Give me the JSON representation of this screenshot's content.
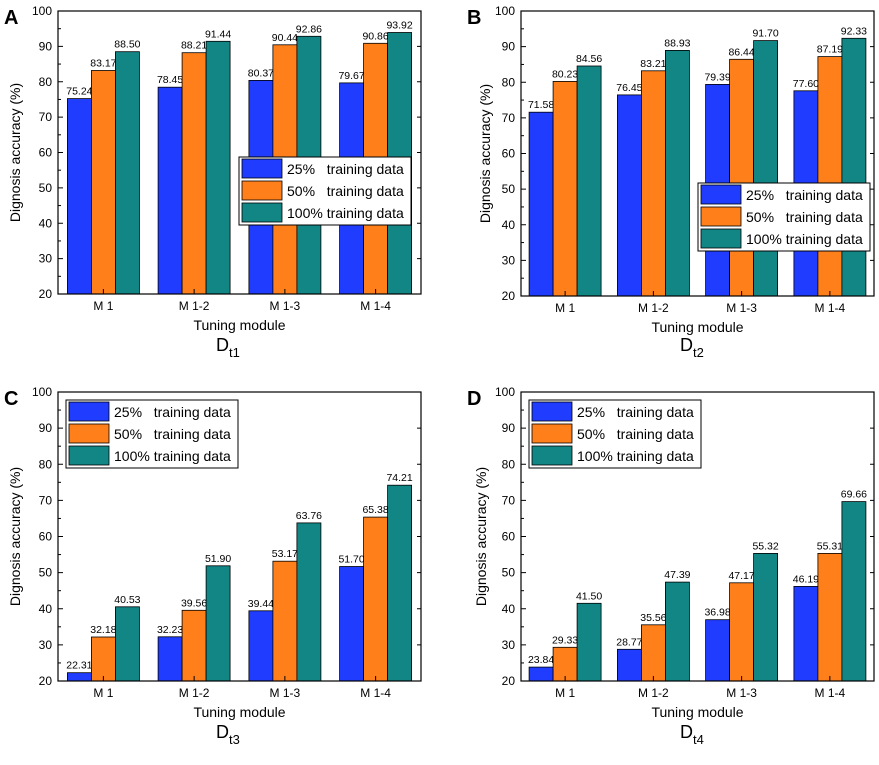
{
  "colors": {
    "series": [
      "#1f3cff",
      "#ff7f1a",
      "#128585"
    ]
  },
  "charts": [
    {
      "panel": "A",
      "caption": {
        "main": "D",
        "sub": "t1"
      },
      "chart_data": {
        "type": "bar",
        "title": "",
        "xlabel": "Tuning module",
        "ylabel": "Dignosis accuracy (%)",
        "ylim": [
          20,
          100
        ],
        "yticks": [
          "20",
          "30",
          "40",
          "50",
          "60",
          "70",
          "80",
          "90",
          "100"
        ],
        "categories": [
          "M 1",
          "M 1-2",
          "M 1-3",
          "M 1-4"
        ],
        "legend_position": "center-right",
        "series": [
          {
            "name": "25%   training data",
            "values": [
              75.24,
              78.45,
              80.37,
              79.67
            ],
            "labels": [
              "75.24",
              "78.45",
              "80.37",
              "79.67"
            ]
          },
          {
            "name": "50%   training data",
            "values": [
              83.17,
              88.21,
              90.44,
              90.86
            ],
            "labels": [
              "83.17",
              "88.21",
              "90.44",
              "90.86"
            ]
          },
          {
            "name": "100% training data",
            "values": [
              88.5,
              91.44,
              92.86,
              93.92
            ],
            "labels": [
              "88.50",
              "91.44",
              "92.86",
              "93.92"
            ]
          }
        ]
      }
    },
    {
      "panel": "B",
      "caption": {
        "main": "D",
        "sub": "t2"
      },
      "chart_data": {
        "type": "bar",
        "title": "",
        "xlabel": "Tuning module",
        "ylabel": "Dignosis accuracy (%)",
        "ylim": [
          20,
          100
        ],
        "yticks": [
          "20",
          "30",
          "40",
          "50",
          "60",
          "70",
          "80",
          "90",
          "100"
        ],
        "categories": [
          "M 1",
          "M 1-2",
          "M 1-3",
          "M 1-4"
        ],
        "legend_position": "lower-right",
        "series": [
          {
            "name": "25%   training data",
            "values": [
              71.58,
              76.45,
              79.39,
              77.6
            ],
            "labels": [
              "71.58",
              "76.45",
              "79.39",
              "77.60"
            ]
          },
          {
            "name": "50%   training data",
            "values": [
              80.23,
              83.21,
              86.44,
              87.19
            ],
            "labels": [
              "80.23",
              "83.21",
              "86.44",
              "87.19"
            ]
          },
          {
            "name": "100% training data",
            "values": [
              84.56,
              88.93,
              91.7,
              92.33
            ],
            "labels": [
              "84.56",
              "88.93",
              "91.70",
              "92.33"
            ]
          }
        ]
      }
    },
    {
      "panel": "C",
      "caption": {
        "main": "D",
        "sub": "t3"
      },
      "chart_data": {
        "type": "bar",
        "title": "",
        "xlabel": "Tuning module",
        "ylabel": "Dignosis accuracy (%)",
        "ylim": [
          20,
          100
        ],
        "yticks": [
          "20",
          "30",
          "40",
          "50",
          "60",
          "70",
          "80",
          "90",
          "100"
        ],
        "categories": [
          "M 1",
          "M 1-2",
          "M 1-3",
          "M 1-4"
        ],
        "legend_position": "top-left",
        "series": [
          {
            "name": "25%   training data",
            "values": [
              22.31,
              32.23,
              39.44,
              51.7
            ],
            "labels": [
              "22.31",
              "32.23",
              "39.44",
              "51.70"
            ]
          },
          {
            "name": "50%   training data",
            "values": [
              32.18,
              39.56,
              53.17,
              65.38
            ],
            "labels": [
              "32.18",
              "39.56",
              "53.17",
              "65.38"
            ]
          },
          {
            "name": "100% training data",
            "values": [
              40.53,
              51.9,
              63.76,
              74.21
            ],
            "labels": [
              "40.53",
              "51.90",
              "63.76",
              "74.21"
            ]
          }
        ]
      }
    },
    {
      "panel": "D",
      "caption": {
        "main": "D",
        "sub": "t4"
      },
      "chart_data": {
        "type": "bar",
        "title": "",
        "xlabel": "Tuning module",
        "ylabel": "Dignosis accuracy (%)",
        "ylim": [
          20,
          100
        ],
        "yticks": [
          "20",
          "30",
          "40",
          "50",
          "60",
          "70",
          "80",
          "90",
          "100"
        ],
        "categories": [
          "M 1",
          "M 1-2",
          "M 1-3",
          "M 1-4"
        ],
        "legend_position": "top-left",
        "series": [
          {
            "name": "25%   training data",
            "values": [
              23.84,
              28.77,
              36.98,
              46.19
            ],
            "labels": [
              "23.84",
              "28.77",
              "36.98",
              "46.19"
            ]
          },
          {
            "name": "50%   training data",
            "values": [
              29.33,
              35.56,
              47.17,
              55.31
            ],
            "labels": [
              "29.33",
              "35.56",
              "47.17",
              "55.31"
            ]
          },
          {
            "name": "100% training data",
            "values": [
              41.5,
              47.39,
              55.32,
              69.66
            ],
            "labels": [
              "41.50",
              "47.39",
              "55.32",
              "69.66"
            ]
          }
        ]
      }
    }
  ]
}
